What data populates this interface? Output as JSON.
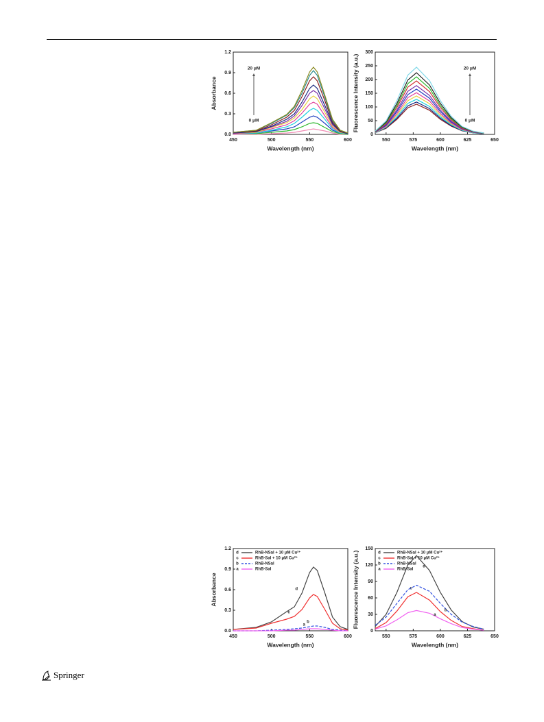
{
  "chart_data": [
    {
      "type": "line",
      "ylabel": "Absorbance",
      "xlabel": "Wavelength (nm)",
      "x": [
        450,
        480,
        500,
        520,
        530,
        540,
        550,
        555,
        560,
        570,
        580,
        590,
        600
      ],
      "xlim": [
        450,
        600
      ],
      "xticks": [
        450,
        500,
        550,
        600
      ],
      "ylim": [
        0,
        1.2
      ],
      "yticks": [
        {
          "value": 0,
          "label": "0.0"
        },
        0.3,
        0.6,
        0.9,
        1.2
      ],
      "annotations": [
        "20 μM",
        "0 μM"
      ],
      "series": [
        {
          "color": "#f08cb4",
          "values": [
            0.0,
            0.0,
            0.01,
            0.02,
            0.03,
            0.05,
            0.07,
            0.08,
            0.07,
            0.05,
            0.02,
            0.0,
            0.0
          ]
        },
        {
          "color": "#2db82d",
          "values": [
            0.01,
            0.01,
            0.03,
            0.05,
            0.07,
            0.11,
            0.16,
            0.17,
            0.16,
            0.1,
            0.04,
            0.01,
            0.0
          ]
        },
        {
          "color": "#1f3fbf",
          "values": [
            0.01,
            0.02,
            0.05,
            0.08,
            0.11,
            0.18,
            0.25,
            0.27,
            0.25,
            0.16,
            0.06,
            0.02,
            0.01
          ]
        },
        {
          "color": "#1fd0e0",
          "values": [
            0.01,
            0.02,
            0.06,
            0.11,
            0.16,
            0.25,
            0.35,
            0.38,
            0.35,
            0.22,
            0.08,
            0.02,
            0.01
          ]
        },
        {
          "color": "#e0409a",
          "values": [
            0.01,
            0.03,
            0.08,
            0.14,
            0.2,
            0.31,
            0.44,
            0.47,
            0.44,
            0.27,
            0.1,
            0.03,
            0.01
          ]
        },
        {
          "color": "#e8d040",
          "values": [
            0.02,
            0.03,
            0.1,
            0.17,
            0.24,
            0.36,
            0.52,
            0.56,
            0.52,
            0.32,
            0.12,
            0.03,
            0.01
          ]
        },
        {
          "color": "#7a2fa8",
          "values": [
            0.02,
            0.04,
            0.11,
            0.19,
            0.27,
            0.42,
            0.6,
            0.64,
            0.6,
            0.37,
            0.14,
            0.04,
            0.01
          ]
        },
        {
          "color": "#1a2a80",
          "values": [
            0.02,
            0.04,
            0.12,
            0.22,
            0.3,
            0.47,
            0.67,
            0.72,
            0.67,
            0.42,
            0.16,
            0.04,
            0.01
          ]
        },
        {
          "color": "#8a1f1f",
          "values": [
            0.03,
            0.05,
            0.14,
            0.25,
            0.35,
            0.55,
            0.78,
            0.84,
            0.78,
            0.49,
            0.18,
            0.05,
            0.02
          ]
        },
        {
          "color": "#2a8a8a",
          "values": [
            0.03,
            0.06,
            0.16,
            0.28,
            0.39,
            0.6,
            0.86,
            0.93,
            0.86,
            0.54,
            0.2,
            0.06,
            0.02
          ]
        },
        {
          "color": "#8a8a20",
          "values": [
            0.03,
            0.06,
            0.17,
            0.29,
            0.41,
            0.64,
            0.91,
            0.98,
            0.91,
            0.57,
            0.22,
            0.06,
            0.02
          ]
        }
      ]
    },
    {
      "type": "line",
      "ylabel": "Fluorescence Intensity (a.u.)",
      "xlabel": "Wavelength (nm)",
      "x": [
        540,
        550,
        560,
        570,
        578,
        590,
        600,
        610,
        620,
        630,
        640
      ],
      "xlim": [
        540,
        650
      ],
      "xticks": [
        550,
        575,
        600,
        625,
        650
      ],
      "ylim": [
        0,
        300
      ],
      "yticks": [
        0,
        50,
        100,
        150,
        200,
        250,
        300
      ],
      "annotations": [
        "20 μM",
        "0 μM"
      ],
      "series": [
        {
          "color": "#8a1f1f",
          "values": [
            6,
            22,
            55,
            97,
            110,
            88,
            55,
            30,
            13,
            6,
            2
          ]
        },
        {
          "color": "#1a2a80",
          "values": [
            6,
            24,
            59,
            104,
            118,
            94,
            59,
            32,
            14,
            6,
            2
          ]
        },
        {
          "color": "#1fd0e0",
          "values": [
            6,
            26,
            64,
            113,
            128,
            102,
            64,
            35,
            15,
            6,
            3
          ]
        },
        {
          "color": "#e8d040",
          "values": [
            7,
            28,
            70,
            123,
            140,
            112,
            70,
            38,
            17,
            7,
            3
          ]
        },
        {
          "color": "#e0409a",
          "values": [
            8,
            30,
            76,
            134,
            152,
            122,
            76,
            41,
            18,
            8,
            3
          ]
        },
        {
          "color": "#1f3fbf",
          "values": [
            8,
            33,
            83,
            145,
            165,
            132,
            83,
            45,
            20,
            8,
            3
          ]
        },
        {
          "color": "#7a2fa8",
          "values": [
            9,
            36,
            89,
            157,
            178,
            142,
            89,
            48,
            21,
            9,
            4
          ]
        },
        {
          "color": "#d03030",
          "values": [
            10,
            39,
            98,
            172,
            195,
            156,
            98,
            53,
            23,
            10,
            4
          ]
        },
        {
          "color": "#2db82d",
          "values": [
            11,
            42,
            105,
            185,
            210,
            168,
            105,
            57,
            25,
            11,
            4
          ]
        },
        {
          "color": "#222222",
          "values": [
            11,
            45,
            113,
            198,
            225,
            180,
            113,
            61,
            27,
            11,
            5
          ]
        },
        {
          "color": "#7fd8e8",
          "values": [
            12,
            49,
            123,
            216,
            245,
            196,
            123,
            66,
            29,
            12,
            5
          ]
        }
      ]
    },
    {
      "type": "line",
      "ylabel": "Absorbance",
      "xlabel": "Wavelength (nm)",
      "x": [
        450,
        480,
        500,
        520,
        530,
        540,
        550,
        555,
        560,
        570,
        580,
        590,
        600
      ],
      "xlim": [
        450,
        600
      ],
      "xticks": [
        450,
        500,
        550,
        600
      ],
      "ylim": [
        0,
        1.2
      ],
      "yticks": [
        {
          "value": 0,
          "label": "0.0"
        },
        0.3,
        0.6,
        0.9,
        1.2
      ],
      "series": [
        {
          "name": "RhB-NSal + 10 μM Cu²⁺",
          "label": "d",
          "color": "#444444",
          "dash": false,
          "values": [
            0.02,
            0.05,
            0.13,
            0.28,
            0.35,
            0.55,
            0.85,
            0.93,
            0.88,
            0.55,
            0.2,
            0.06,
            0.02
          ]
        },
        {
          "name": "RhB-Sal + 10 μM Cu²⁺",
          "label": "c",
          "color": "#f03030",
          "dash": false,
          "values": [
            0.02,
            0.04,
            0.11,
            0.17,
            0.21,
            0.31,
            0.48,
            0.53,
            0.5,
            0.31,
            0.11,
            0.03,
            0.01
          ]
        },
        {
          "name": "RhB-NSal",
          "label": "b",
          "color": "#3050e0",
          "dash": true,
          "values": [
            0.0,
            0.0,
            0.01,
            0.02,
            0.03,
            0.04,
            0.06,
            0.07,
            0.07,
            0.05,
            0.02,
            0.01,
            0.0
          ]
        },
        {
          "name": "RhB-Sal",
          "label": "a",
          "color": "#f060f0",
          "dash": false,
          "values": [
            0.0,
            0.0,
            0.0,
            0.01,
            0.01,
            0.02,
            0.03,
            0.03,
            0.03,
            0.02,
            0.01,
            0.0,
            0.0
          ]
        }
      ]
    },
    {
      "type": "line",
      "ylabel": "Fluorescence Intensity (a.u.)",
      "xlabel": "Wavelength (nm)",
      "x": [
        540,
        550,
        560,
        570,
        578,
        590,
        600,
        610,
        620,
        630,
        640
      ],
      "xlim": [
        540,
        650
      ],
      "xticks": [
        550,
        575,
        600,
        625,
        650
      ],
      "ylim": [
        0,
        150
      ],
      "yticks": [
        0,
        30,
        60,
        90,
        120,
        150
      ],
      "series": [
        {
          "name": "RhB-NSal + 10 μM Cu²⁺",
          "label": "d",
          "color": "#444444",
          "dash": false,
          "values": [
            8,
            30,
            70,
            120,
            137,
            110,
            70,
            38,
            17,
            7,
            3
          ]
        },
        {
          "name": "RhB-Sal + 10 μM Cu²⁺",
          "label": "c",
          "color": "#f03030",
          "dash": false,
          "values": [
            4,
            15,
            36,
            62,
            70,
            56,
            35,
            19,
            8,
            4,
            1
          ]
        },
        {
          "name": "RhB-NSal",
          "label": "b",
          "color": "#3050e0",
          "dash": true,
          "values": [
            10,
            25,
            50,
            75,
            83,
            72,
            50,
            30,
            16,
            8,
            3
          ]
        },
        {
          "name": "RhB-Sal",
          "label": "a",
          "color": "#f060f0",
          "dash": false,
          "values": [
            3,
            9,
            20,
            33,
            37,
            32,
            22,
            13,
            6,
            3,
            1
          ]
        }
      ]
    }
  ],
  "footer": {
    "publisher": "Springer"
  }
}
